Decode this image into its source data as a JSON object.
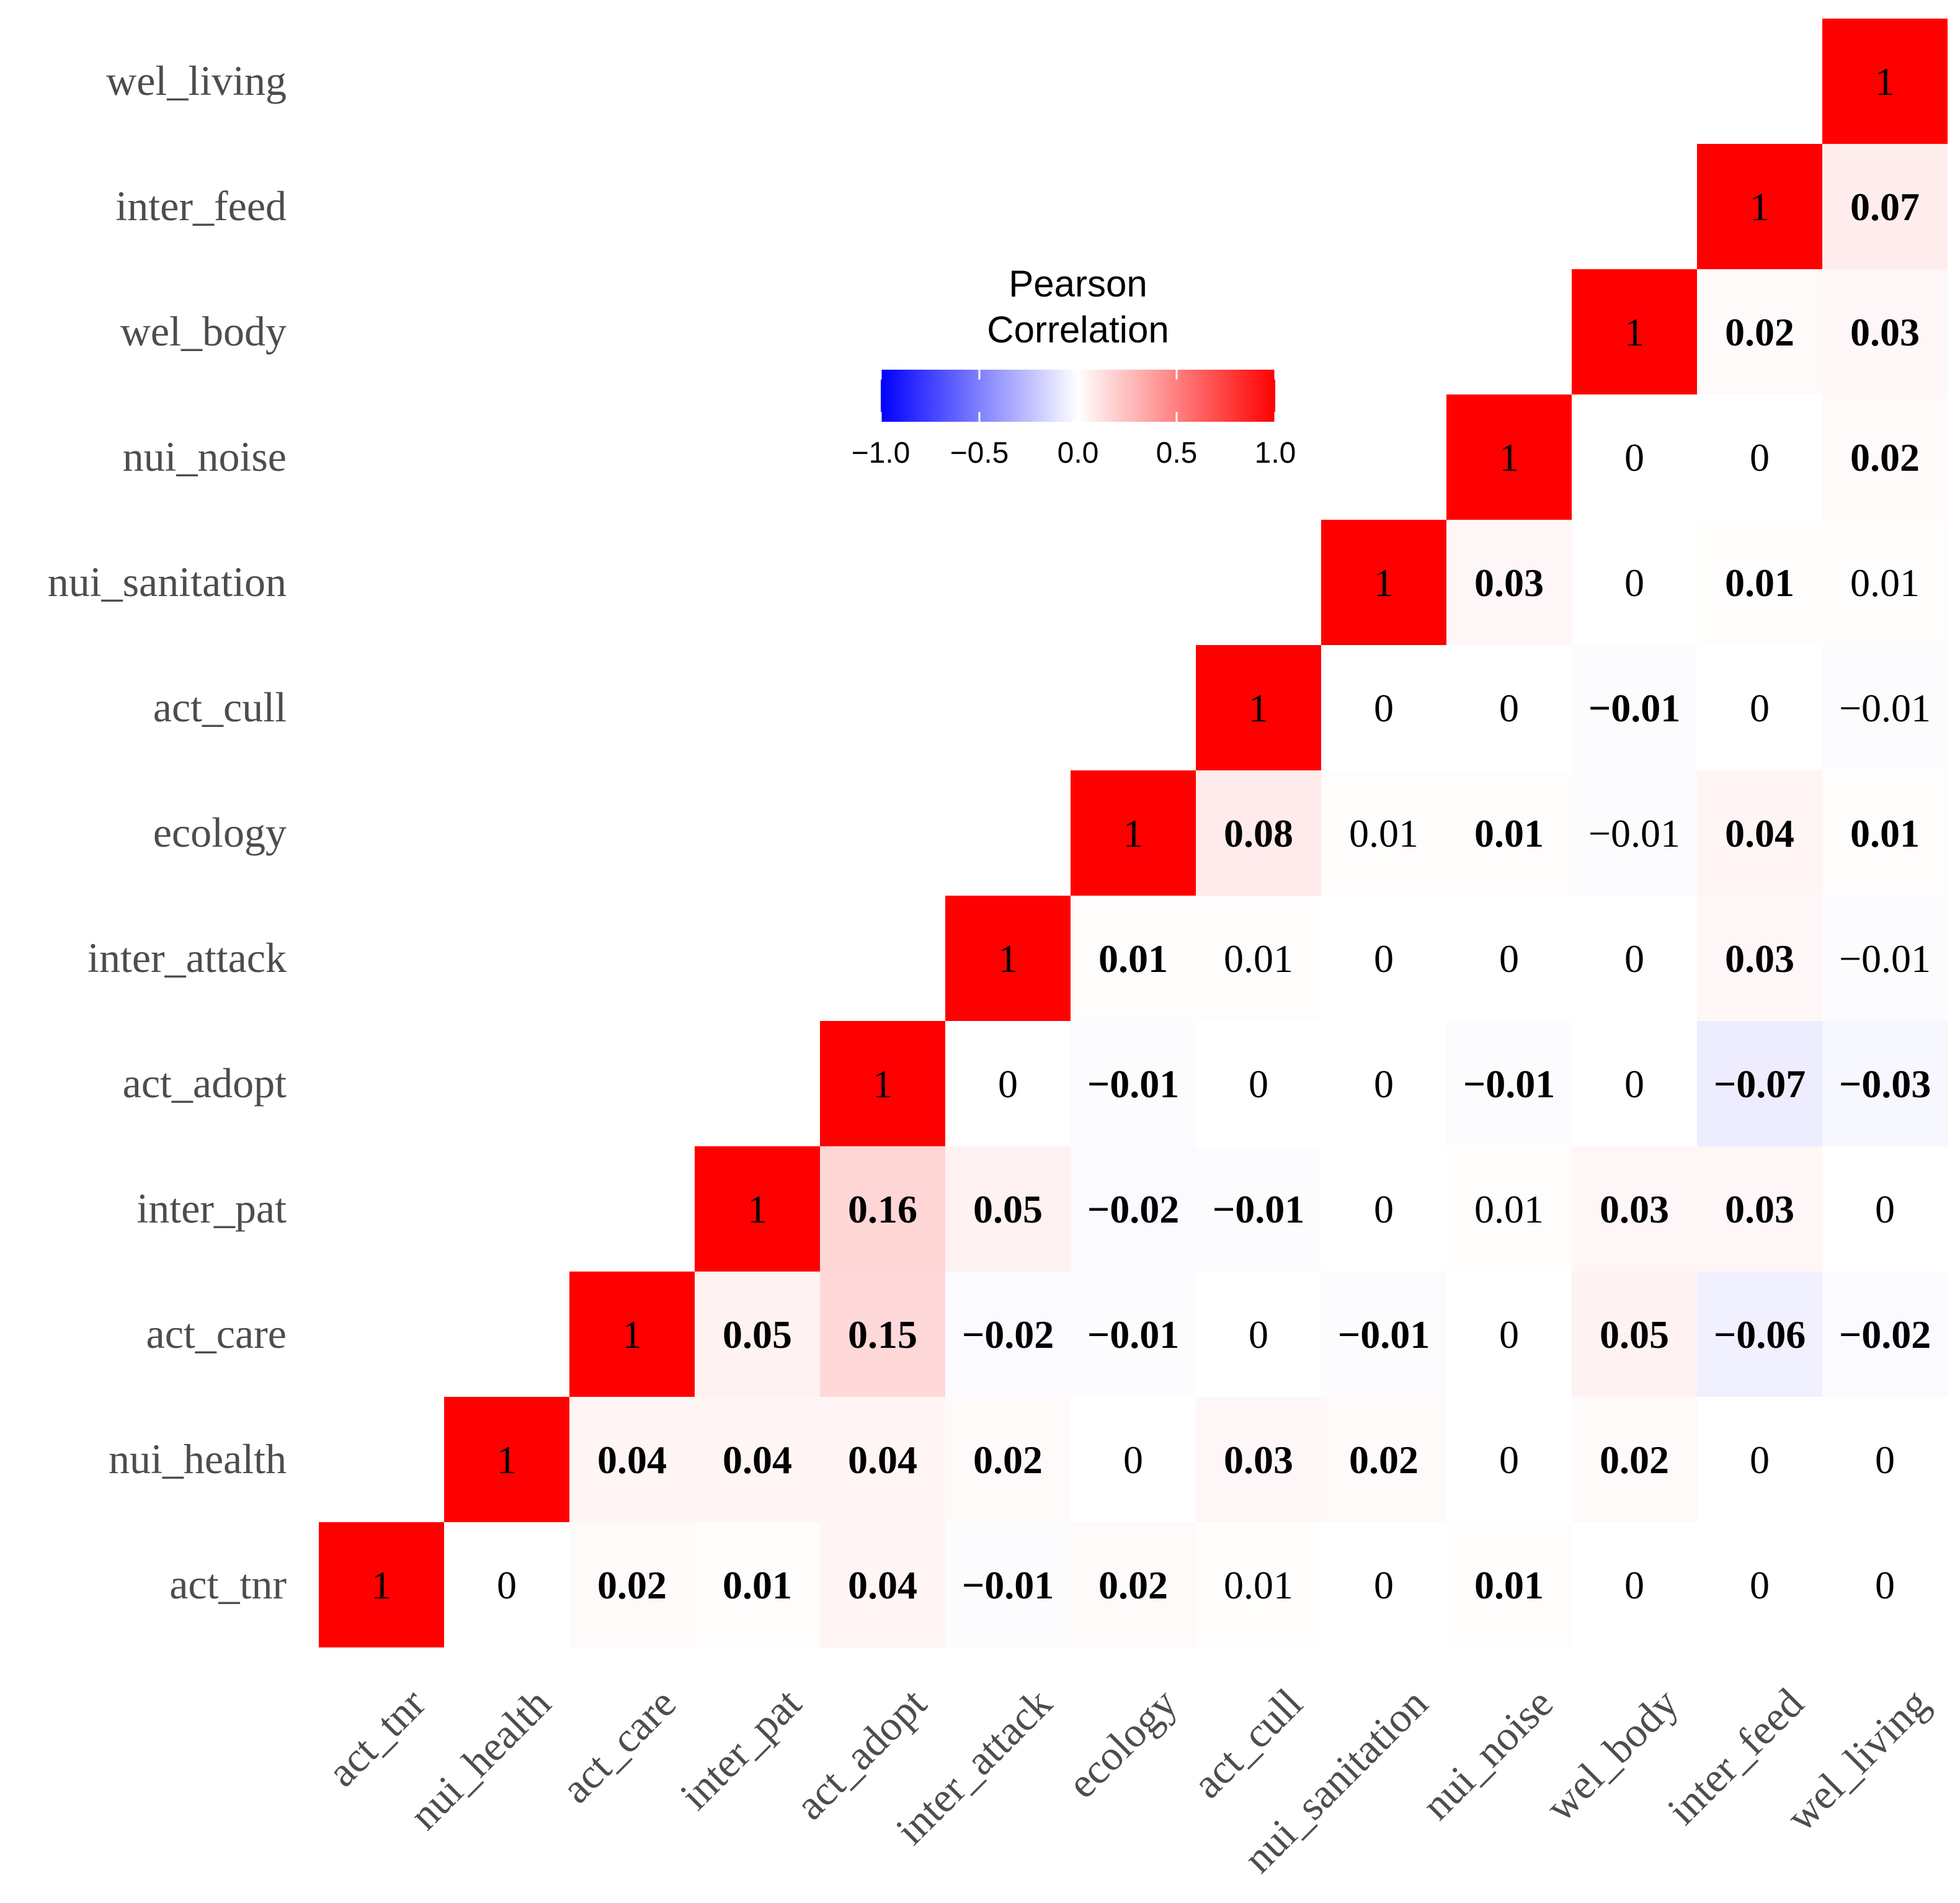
{
  "chart_data": {
    "type": "heatmap",
    "title": "",
    "variables": [
      "act_tnr",
      "nui_health",
      "act_care",
      "inter_pat",
      "act_adopt",
      "inter_attack",
      "ecology",
      "act_cull",
      "nui_sanitation",
      "nui_noise",
      "wel_body",
      "inter_feed",
      "wel_living"
    ],
    "cells": [
      {
        "x": "act_tnr",
        "y": "act_tnr",
        "value": 1,
        "label": "1",
        "bold": false
      },
      {
        "x": "nui_health",
        "y": "act_tnr",
        "value": 0,
        "label": "0",
        "bold": false
      },
      {
        "x": "act_care",
        "y": "act_tnr",
        "value": 0.02,
        "label": "0.02",
        "bold": true
      },
      {
        "x": "inter_pat",
        "y": "act_tnr",
        "value": 0.01,
        "label": "0.01",
        "bold": true
      },
      {
        "x": "act_adopt",
        "y": "act_tnr",
        "value": 0.04,
        "label": "0.04",
        "bold": true
      },
      {
        "x": "inter_attack",
        "y": "act_tnr",
        "value": -0.01,
        "label": "−0.01",
        "bold": true
      },
      {
        "x": "ecology",
        "y": "act_tnr",
        "value": 0.02,
        "label": "0.02",
        "bold": true
      },
      {
        "x": "act_cull",
        "y": "act_tnr",
        "value": 0.01,
        "label": "0.01",
        "bold": false
      },
      {
        "x": "nui_sanitation",
        "y": "act_tnr",
        "value": 0,
        "label": "0",
        "bold": false
      },
      {
        "x": "nui_noise",
        "y": "act_tnr",
        "value": 0.01,
        "label": "0.01",
        "bold": true
      },
      {
        "x": "wel_body",
        "y": "act_tnr",
        "value": 0,
        "label": "0",
        "bold": false
      },
      {
        "x": "inter_feed",
        "y": "act_tnr",
        "value": 0,
        "label": "0",
        "bold": false
      },
      {
        "x": "wel_living",
        "y": "act_tnr",
        "value": 0,
        "label": "0",
        "bold": false
      },
      {
        "x": "nui_health",
        "y": "nui_health",
        "value": 1,
        "label": "1",
        "bold": false
      },
      {
        "x": "act_care",
        "y": "nui_health",
        "value": 0.04,
        "label": "0.04",
        "bold": true
      },
      {
        "x": "inter_pat",
        "y": "nui_health",
        "value": 0.04,
        "label": "0.04",
        "bold": true
      },
      {
        "x": "act_adopt",
        "y": "nui_health",
        "value": 0.04,
        "label": "0.04",
        "bold": true
      },
      {
        "x": "inter_attack",
        "y": "nui_health",
        "value": 0.02,
        "label": "0.02",
        "bold": true
      },
      {
        "x": "ecology",
        "y": "nui_health",
        "value": 0,
        "label": "0",
        "bold": false
      },
      {
        "x": "act_cull",
        "y": "nui_health",
        "value": 0.03,
        "label": "0.03",
        "bold": true
      },
      {
        "x": "nui_sanitation",
        "y": "nui_health",
        "value": 0.02,
        "label": "0.02",
        "bold": true
      },
      {
        "x": "nui_noise",
        "y": "nui_health",
        "value": 0,
        "label": "0",
        "bold": false
      },
      {
        "x": "wel_body",
        "y": "nui_health",
        "value": 0.02,
        "label": "0.02",
        "bold": true
      },
      {
        "x": "inter_feed",
        "y": "nui_health",
        "value": 0,
        "label": "0",
        "bold": false
      },
      {
        "x": "wel_living",
        "y": "nui_health",
        "value": 0,
        "label": "0",
        "bold": false
      },
      {
        "x": "act_care",
        "y": "act_care",
        "value": 1,
        "label": "1",
        "bold": false
      },
      {
        "x": "inter_pat",
        "y": "act_care",
        "value": 0.05,
        "label": "0.05",
        "bold": true
      },
      {
        "x": "act_adopt",
        "y": "act_care",
        "value": 0.15,
        "label": "0.15",
        "bold": true
      },
      {
        "x": "inter_attack",
        "y": "act_care",
        "value": -0.02,
        "label": "−0.02",
        "bold": true
      },
      {
        "x": "ecology",
        "y": "act_care",
        "value": -0.01,
        "label": "−0.01",
        "bold": true
      },
      {
        "x": "act_cull",
        "y": "act_care",
        "value": 0,
        "label": "0",
        "bold": false
      },
      {
        "x": "nui_sanitation",
        "y": "act_care",
        "value": -0.01,
        "label": "−0.01",
        "bold": true
      },
      {
        "x": "nui_noise",
        "y": "act_care",
        "value": 0,
        "label": "0",
        "bold": false
      },
      {
        "x": "wel_body",
        "y": "act_care",
        "value": 0.05,
        "label": "0.05",
        "bold": true
      },
      {
        "x": "inter_feed",
        "y": "act_care",
        "value": -0.06,
        "label": "−0.06",
        "bold": true
      },
      {
        "x": "wel_living",
        "y": "act_care",
        "value": -0.02,
        "label": "−0.02",
        "bold": true
      },
      {
        "x": "inter_pat",
        "y": "inter_pat",
        "value": 1,
        "label": "1",
        "bold": false
      },
      {
        "x": "act_adopt",
        "y": "inter_pat",
        "value": 0.16,
        "label": "0.16",
        "bold": true
      },
      {
        "x": "inter_attack",
        "y": "inter_pat",
        "value": 0.05,
        "label": "0.05",
        "bold": true
      },
      {
        "x": "ecology",
        "y": "inter_pat",
        "value": -0.02,
        "label": "−0.02",
        "bold": true
      },
      {
        "x": "act_cull",
        "y": "inter_pat",
        "value": -0.01,
        "label": "−0.01",
        "bold": true
      },
      {
        "x": "nui_sanitation",
        "y": "inter_pat",
        "value": 0,
        "label": "0",
        "bold": false
      },
      {
        "x": "nui_noise",
        "y": "inter_pat",
        "value": 0.01,
        "label": "0.01",
        "bold": false
      },
      {
        "x": "wel_body",
        "y": "inter_pat",
        "value": 0.03,
        "label": "0.03",
        "bold": true
      },
      {
        "x": "inter_feed",
        "y": "inter_pat",
        "value": 0.03,
        "label": "0.03",
        "bold": true
      },
      {
        "x": "wel_living",
        "y": "inter_pat",
        "value": 0,
        "label": "0",
        "bold": false
      },
      {
        "x": "act_adopt",
        "y": "act_adopt",
        "value": 1,
        "label": "1",
        "bold": false
      },
      {
        "x": "inter_attack",
        "y": "act_adopt",
        "value": 0,
        "label": "0",
        "bold": false
      },
      {
        "x": "ecology",
        "y": "act_adopt",
        "value": -0.01,
        "label": "−0.01",
        "bold": true
      },
      {
        "x": "act_cull",
        "y": "act_adopt",
        "value": 0,
        "label": "0",
        "bold": false
      },
      {
        "x": "nui_sanitation",
        "y": "act_adopt",
        "value": 0,
        "label": "0",
        "bold": false
      },
      {
        "x": "nui_noise",
        "y": "act_adopt",
        "value": -0.01,
        "label": "−0.01",
        "bold": true
      },
      {
        "x": "wel_body",
        "y": "act_adopt",
        "value": 0,
        "label": "0",
        "bold": false
      },
      {
        "x": "inter_feed",
        "y": "act_adopt",
        "value": -0.07,
        "label": "−0.07",
        "bold": true
      },
      {
        "x": "wel_living",
        "y": "act_adopt",
        "value": -0.03,
        "label": "−0.03",
        "bold": true
      },
      {
        "x": "inter_attack",
        "y": "inter_attack",
        "value": 1,
        "label": "1",
        "bold": false
      },
      {
        "x": "ecology",
        "y": "inter_attack",
        "value": 0.01,
        "label": "0.01",
        "bold": true
      },
      {
        "x": "act_cull",
        "y": "inter_attack",
        "value": 0.01,
        "label": "0.01",
        "bold": false
      },
      {
        "x": "nui_sanitation",
        "y": "inter_attack",
        "value": 0,
        "label": "0",
        "bold": false
      },
      {
        "x": "nui_noise",
        "y": "inter_attack",
        "value": 0,
        "label": "0",
        "bold": false
      },
      {
        "x": "wel_body",
        "y": "inter_attack",
        "value": 0,
        "label": "0",
        "bold": false
      },
      {
        "x": "inter_feed",
        "y": "inter_attack",
        "value": 0.03,
        "label": "0.03",
        "bold": true
      },
      {
        "x": "wel_living",
        "y": "inter_attack",
        "value": -0.01,
        "label": "−0.01",
        "bold": false
      },
      {
        "x": "ecology",
        "y": "ecology",
        "value": 1,
        "label": "1",
        "bold": false
      },
      {
        "x": "act_cull",
        "y": "ecology",
        "value": 0.08,
        "label": "0.08",
        "bold": true
      },
      {
        "x": "nui_sanitation",
        "y": "ecology",
        "value": 0.01,
        "label": "0.01",
        "bold": false
      },
      {
        "x": "nui_noise",
        "y": "ecology",
        "value": 0.01,
        "label": "0.01",
        "bold": true
      },
      {
        "x": "wel_body",
        "y": "ecology",
        "value": -0.01,
        "label": "−0.01",
        "bold": false
      },
      {
        "x": "inter_feed",
        "y": "ecology",
        "value": 0.04,
        "label": "0.04",
        "bold": true
      },
      {
        "x": "wel_living",
        "y": "ecology",
        "value": 0.01,
        "label": "0.01",
        "bold": true
      },
      {
        "x": "act_cull",
        "y": "act_cull",
        "value": 1,
        "label": "1",
        "bold": false
      },
      {
        "x": "nui_sanitation",
        "y": "act_cull",
        "value": 0,
        "label": "0",
        "bold": false
      },
      {
        "x": "nui_noise",
        "y": "act_cull",
        "value": 0,
        "label": "0",
        "bold": false
      },
      {
        "x": "wel_body",
        "y": "act_cull",
        "value": -0.01,
        "label": "−0.01",
        "bold": true
      },
      {
        "x": "inter_feed",
        "y": "act_cull",
        "value": 0,
        "label": "0",
        "bold": false
      },
      {
        "x": "wel_living",
        "y": "act_cull",
        "value": -0.01,
        "label": "−0.01",
        "bold": false
      },
      {
        "x": "nui_sanitation",
        "y": "nui_sanitation",
        "value": 1,
        "label": "1",
        "bold": false
      },
      {
        "x": "nui_noise",
        "y": "nui_sanitation",
        "value": 0.03,
        "label": "0.03",
        "bold": true
      },
      {
        "x": "wel_body",
        "y": "nui_sanitation",
        "value": 0,
        "label": "0",
        "bold": false
      },
      {
        "x": "inter_feed",
        "y": "nui_sanitation",
        "value": 0.01,
        "label": "0.01",
        "bold": true
      },
      {
        "x": "wel_living",
        "y": "nui_sanitation",
        "value": 0.01,
        "label": "0.01",
        "bold": false
      },
      {
        "x": "nui_noise",
        "y": "nui_noise",
        "value": 1,
        "label": "1",
        "bold": false
      },
      {
        "x": "wel_body",
        "y": "nui_noise",
        "value": 0,
        "label": "0",
        "bold": false
      },
      {
        "x": "inter_feed",
        "y": "nui_noise",
        "value": 0,
        "label": "0",
        "bold": false
      },
      {
        "x": "wel_living",
        "y": "nui_noise",
        "value": 0.02,
        "label": "0.02",
        "bold": true
      },
      {
        "x": "wel_body",
        "y": "wel_body",
        "value": 1,
        "label": "1",
        "bold": false
      },
      {
        "x": "inter_feed",
        "y": "wel_body",
        "value": 0.02,
        "label": "0.02",
        "bold": true
      },
      {
        "x": "wel_living",
        "y": "wel_body",
        "value": 0.03,
        "label": "0.03",
        "bold": true
      },
      {
        "x": "inter_feed",
        "y": "inter_feed",
        "value": 1,
        "label": "1",
        "bold": false
      },
      {
        "x": "wel_living",
        "y": "inter_feed",
        "value": 0.07,
        "label": "0.07",
        "bold": true
      },
      {
        "x": "wel_living",
        "y": "wel_living",
        "value": 1,
        "label": "1",
        "bold": false
      }
    ],
    "legend": {
      "title_lines": [
        "Pearson",
        "Correlation"
      ],
      "ticks": [
        -1.0,
        -0.5,
        0.0,
        0.5,
        1.0
      ],
      "tick_labels": [
        "−1.0",
        "−0.5",
        "0.0",
        "0.5",
        "1.0"
      ],
      "range": [
        -1,
        1
      ],
      "placement": "top-center"
    },
    "colors": {
      "low": "#0000ff",
      "mid": "#ffffff",
      "high": "#ff0000",
      "tick_text": "#4d4d4d",
      "cell_text": "#000000"
    }
  }
}
